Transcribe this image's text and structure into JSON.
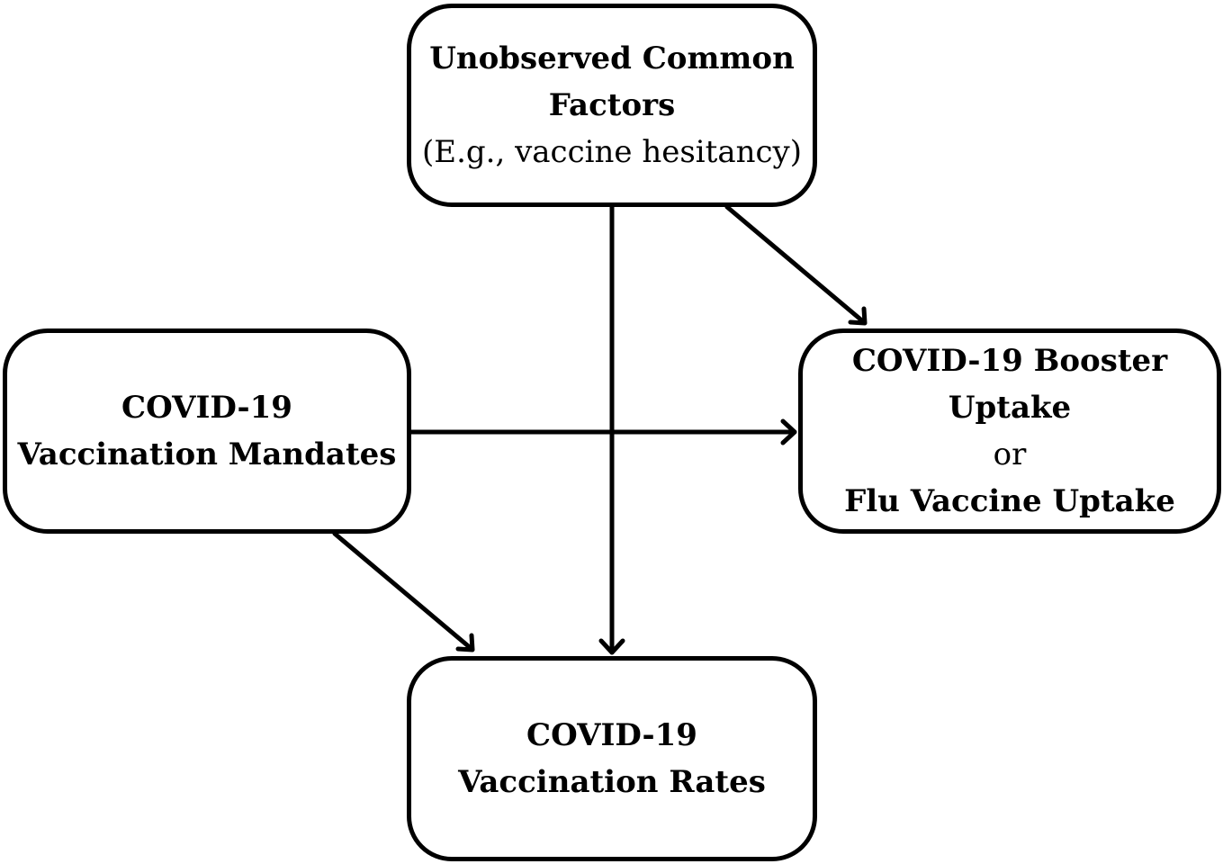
{
  "nodes": {
    "factors": {
      "line1": "Unobserved Common",
      "line2": "Factors",
      "line3": "(E.g., vaccine hesitancy)"
    },
    "mandates": {
      "line1": "COVID-19",
      "line2": "Vaccination Mandates"
    },
    "booster": {
      "line1": "COVID-19 Booster",
      "line2": "Uptake",
      "line3": "or",
      "line4": "Flu Vaccine Uptake"
    },
    "rates": {
      "line1": "COVID-19",
      "line2": "Vaccination Rates"
    }
  },
  "edges": [
    {
      "from": "factors",
      "to": "rates"
    },
    {
      "from": "factors",
      "to": "booster"
    },
    {
      "from": "mandates",
      "to": "booster"
    },
    {
      "from": "mandates",
      "to": "rates"
    }
  ],
  "colors": {
    "stroke": "#000000",
    "background": "#ffffff"
  }
}
